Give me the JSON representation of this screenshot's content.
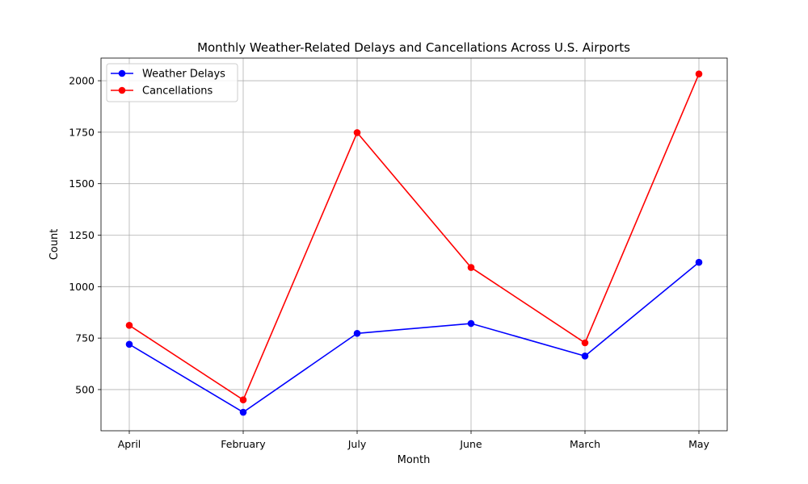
{
  "chart_data": {
    "type": "line",
    "title": "Monthly Weather-Related Delays and Cancellations Across U.S. Airports",
    "xlabel": "Month",
    "ylabel": "Count",
    "categories": [
      "April",
      "February",
      "July",
      "June",
      "March",
      "May"
    ],
    "ylim": [
      300,
      2110
    ],
    "yticks": [
      500,
      750,
      1000,
      1250,
      1500,
      1750,
      2000
    ],
    "grid": true,
    "legend_position": "top-left",
    "series": [
      {
        "name": "Weather Delays",
        "color": "#0000ff",
        "values": [
          720,
          390,
          773,
          821,
          663,
          1118
        ]
      },
      {
        "name": "Cancellations",
        "color": "#ff0000",
        "values": [
          812,
          450,
          1748,
          1093,
          727,
          2033
        ]
      }
    ]
  }
}
